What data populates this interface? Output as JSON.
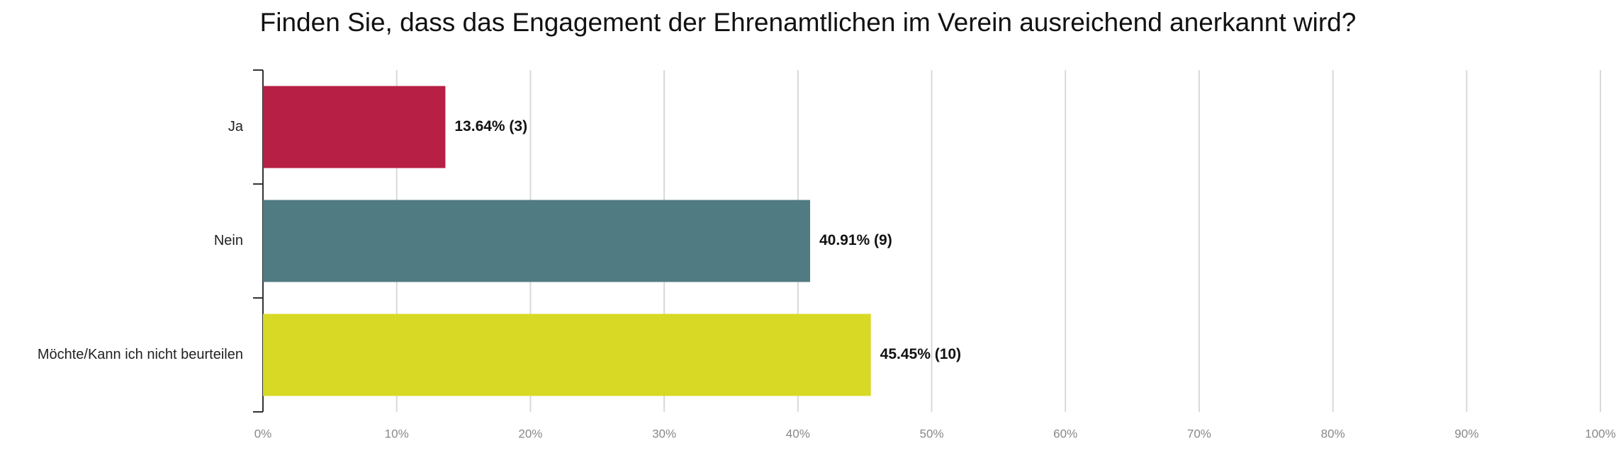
{
  "chart_data": {
    "type": "bar",
    "orientation": "horizontal",
    "title": "Finden Sie, dass das Engagement der Ehrenamtlichen im Verein ausreichend anerkannt wird?",
    "categories": [
      "Ja",
      "Nein",
      "Möchte/Kann ich nicht beurteilen"
    ],
    "values": [
      13.64,
      40.91,
      45.45
    ],
    "value_labels": [
      "13.64% (3)",
      "40.91% (9)",
      "45.45% (10)"
    ],
    "colors": [
      "#b71f44",
      "#517b82",
      "#d7d925"
    ],
    "xlim": [
      0,
      100
    ],
    "xticks": [
      {
        "value": 0,
        "label": "0%"
      },
      {
        "value": 10,
        "label": "10%"
      },
      {
        "value": 20,
        "label": "20%"
      },
      {
        "value": 30,
        "label": "30%"
      },
      {
        "value": 40,
        "label": "40%"
      },
      {
        "value": 50,
        "label": "50%"
      },
      {
        "value": 60,
        "label": "60%"
      },
      {
        "value": 70,
        "label": "70%"
      },
      {
        "value": 80,
        "label": "80%"
      },
      {
        "value": 90,
        "label": "90%"
      },
      {
        "value": 100,
        "label": "100%"
      }
    ],
    "grid": true
  }
}
